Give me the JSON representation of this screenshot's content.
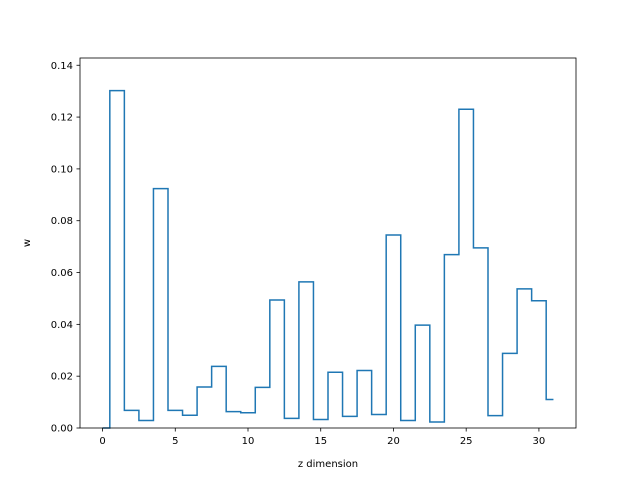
{
  "chart_data": {
    "type": "line",
    "drawstyle": "steps-mid",
    "title": "",
    "xlabel": "z dimension",
    "ylabel": "w",
    "xlim": [
      -1.55,
      32.55
    ],
    "ylim": [
      0,
      0.1428
    ],
    "xticks": [
      0,
      5,
      10,
      15,
      20,
      25,
      30
    ],
    "yticks": [
      0.0,
      0.02,
      0.04,
      0.06,
      0.08,
      0.1,
      0.12,
      0.14
    ],
    "ytick_labels": [
      "0.00",
      "0.02",
      "0.04",
      "0.06",
      "0.08",
      "0.10",
      "0.12",
      "0.14"
    ],
    "xtick_labels": [
      "0",
      "5",
      "10",
      "15",
      "20",
      "25",
      "30"
    ],
    "grid": false,
    "series": [
      {
        "color": "#1f77b4",
        "x": [
          0,
          1,
          2,
          3,
          4,
          5,
          6,
          7,
          8,
          9,
          10,
          11,
          12,
          13,
          14,
          15,
          16,
          17,
          18,
          19,
          20,
          21,
          22,
          23,
          24,
          25,
          26,
          27,
          28,
          29,
          30,
          31
        ],
        "y": [
          0.0,
          0.1302,
          0.0068,
          0.0029,
          0.0924,
          0.0068,
          0.0049,
          0.0158,
          0.0238,
          0.0063,
          0.0059,
          0.0157,
          0.0494,
          0.0037,
          0.0564,
          0.0033,
          0.0215,
          0.0045,
          0.0222,
          0.0052,
          0.0745,
          0.0029,
          0.0397,
          0.0023,
          0.0669,
          0.123,
          0.0695,
          0.0048,
          0.0288,
          0.0537,
          0.0491,
          0.011
        ]
      }
    ]
  }
}
